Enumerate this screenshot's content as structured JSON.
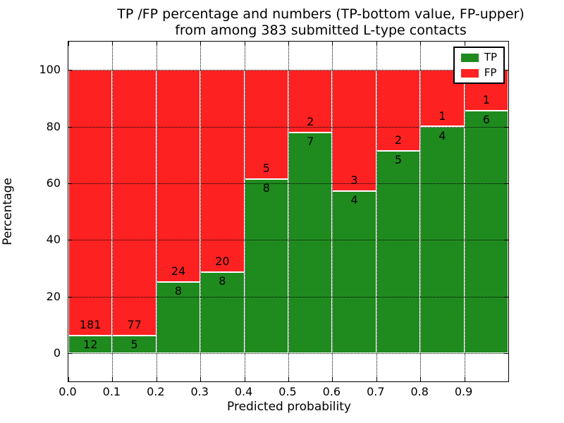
{
  "chart_data": {
    "type": "bar",
    "stacked": true,
    "normalized": "percent",
    "title": "TP /FP percentage and numbers (TP-bottom value, FP-upper)\nfrom among 383 submitted L-type contacts",
    "title_lines": [
      "TP /FP percentage and numbers (TP-bottom value, FP-upper)",
      "from among 383 submitted L-type contacts"
    ],
    "total_contacts": 383,
    "xlabel": "Predicted probability",
    "ylabel": "Percentage",
    "xlim": [
      0.0,
      1.0
    ],
    "ylim": [
      -10,
      110
    ],
    "x_tick_labels": [
      "0.0",
      "0.1",
      "0.2",
      "0.3",
      "0.4",
      "0.5",
      "0.6",
      "0.7",
      "0.8",
      "0.9"
    ],
    "y_tick_labels": [
      "0",
      "20",
      "40",
      "60",
      "80",
      "100"
    ],
    "y_ticks": [
      0,
      20,
      40,
      60,
      80,
      100
    ],
    "bin_edges": [
      0.0,
      0.1,
      0.2,
      0.3,
      0.4,
      0.5,
      0.6,
      0.7,
      0.8,
      0.9,
      1.0
    ],
    "series": [
      {
        "name": "TP",
        "color": "#1f8b1f",
        "counts": [
          12,
          5,
          8,
          8,
          8,
          7,
          4,
          5,
          4,
          6
        ]
      },
      {
        "name": "FP",
        "color": "#fd2121",
        "counts": [
          181,
          77,
          24,
          20,
          5,
          2,
          3,
          2,
          1,
          1
        ]
      }
    ],
    "tp_percent_by_bin": [
      6.22,
      6.1,
      25.0,
      28.57,
      61.54,
      77.78,
      57.14,
      71.43,
      80.0,
      85.71
    ],
    "legend": {
      "position": "upper right",
      "entries": [
        "TP",
        "FP"
      ]
    },
    "grid": {
      "style": "dotted",
      "color": "#000000"
    }
  }
}
